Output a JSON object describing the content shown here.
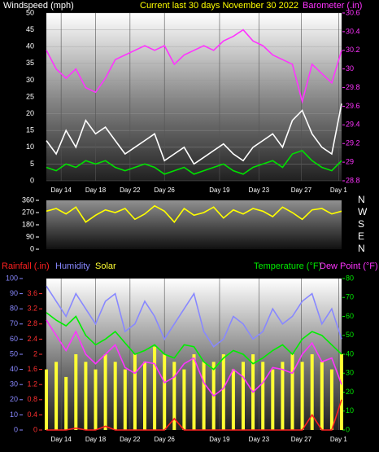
{
  "chart_data": [
    {
      "type": "line",
      "title": "Current last 30 days November 30 2022",
      "ylabel": "Windspeed (mph)",
      "y2label": "Barometer (.in)",
      "x": [
        0,
        1,
        2,
        3,
        4,
        5,
        6,
        7,
        8,
        9,
        10,
        11,
        12,
        13,
        14,
        15,
        16,
        17,
        18,
        19,
        20,
        21,
        22,
        23,
        24,
        25,
        26,
        27,
        28,
        29,
        30
      ],
      "xlim": [
        0,
        30
      ],
      "xticks": [
        {
          "value": 1.5,
          "label": "Day 14"
        },
        {
          "value": 5,
          "label": "Day 18"
        },
        {
          "value": 8.5,
          "label": "Day 22"
        },
        {
          "value": 12,
          "label": "Day 26"
        },
        {
          "value": 17.6,
          "label": "Day 19"
        },
        {
          "value": 21.6,
          "label": "Day 23"
        },
        {
          "value": 25.9,
          "label": "Day 27"
        },
        {
          "value": 29.7,
          "label": "Day 1"
        }
      ],
      "ylim": [
        0,
        50
      ],
      "yticks": [
        0,
        5,
        10,
        15,
        20,
        25,
        30,
        35,
        40,
        45,
        50
      ],
      "y2lim": [
        28.8,
        30.6
      ],
      "y2ticks": [
        28.8,
        29,
        29.2,
        29.4,
        29.6,
        29.8,
        30,
        30.2,
        30.4,
        30.6
      ],
      "grid": true,
      "series": [
        {
          "color": "#ffffff",
          "values": [
            12,
            8,
            15,
            10,
            18,
            14,
            16,
            12,
            8,
            10,
            12,
            14,
            6,
            8,
            10,
            5,
            7,
            9,
            11,
            8,
            6,
            10,
            12,
            14,
            10,
            18,
            21,
            14,
            10,
            8,
            23
          ]
        },
        {
          "color": "#00e000",
          "values": [
            4,
            3,
            5,
            4,
            6,
            5,
            6,
            4,
            3,
            4,
            5,
            4,
            2,
            3,
            4,
            2,
            3,
            4,
            5,
            3,
            2,
            4,
            5,
            6,
            4,
            8,
            9,
            6,
            4,
            3,
            6
          ]
        },
        {
          "color": "#ff33ff",
          "axis": "y2",
          "values": [
            30.2,
            30.0,
            29.9,
            30.0,
            29.8,
            29.75,
            29.9,
            30.1,
            30.15,
            30.2,
            30.25,
            30.2,
            30.25,
            30.05,
            30.15,
            30.2,
            30.25,
            30.2,
            30.3,
            30.35,
            30.42,
            30.3,
            30.25,
            30.15,
            30.1,
            30.05,
            29.65,
            30.05,
            29.95,
            29.85,
            30.2
          ]
        }
      ]
    },
    {
      "type": "line",
      "x": [
        0,
        1,
        2,
        3,
        4,
        5,
        6,
        7,
        8,
        9,
        10,
        11,
        12,
        13,
        14,
        15,
        16,
        17,
        18,
        19,
        20,
        21,
        22,
        23,
        24,
        25,
        26,
        27,
        28,
        29,
        30
      ],
      "xlim": [
        0,
        30
      ],
      "ylim": [
        0,
        360
      ],
      "yticks": [
        0,
        90,
        180,
        270,
        360
      ],
      "direction_labels": [
        "N",
        "E",
        "S",
        "W",
        "N"
      ],
      "series": [
        {
          "color": "#ffff00",
          "values": [
            280,
            300,
            260,
            310,
            200,
            250,
            290,
            270,
            300,
            220,
            260,
            320,
            280,
            200,
            300,
            250,
            270,
            310,
            230,
            290,
            260,
            300,
            280,
            240,
            310,
            270,
            220,
            290,
            300,
            260,
            280
          ]
        }
      ]
    },
    {
      "type": "line",
      "x": [
        0,
        1,
        2,
        3,
        4,
        5,
        6,
        7,
        8,
        9,
        10,
        11,
        12,
        13,
        14,
        15,
        16,
        17,
        18,
        19,
        20,
        21,
        22,
        23,
        24,
        25,
        26,
        27,
        28,
        29,
        30
      ],
      "xlim": [
        0,
        30
      ],
      "xticks": [
        {
          "value": 1.5,
          "label": "Day 14"
        },
        {
          "value": 5,
          "label": "Day 18"
        },
        {
          "value": 8.5,
          "label": "Day 22"
        },
        {
          "value": 12,
          "label": "Day 26"
        },
        {
          "value": 17.6,
          "label": "Day 19"
        },
        {
          "value": 21.6,
          "label": "Day 23"
        },
        {
          "value": 25.9,
          "label": "Day 27"
        },
        {
          "value": 29.7,
          "label": "Day 1"
        }
      ],
      "ylim": [
        0,
        100
      ],
      "yticks": [
        0,
        10,
        20,
        30,
        40,
        50,
        60,
        70,
        80,
        90,
        100
      ],
      "y2lim": [
        0,
        80
      ],
      "y2ticks": [
        0,
        10,
        20,
        30,
        40,
        50,
        60,
        70,
        80
      ],
      "y3lim": [
        0,
        4
      ],
      "y3ticks": [
        0,
        0.4,
        0.8,
        1.2,
        1.6,
        2,
        2.4,
        2.8,
        3.2,
        3.6
      ],
      "series": [
        {
          "name": "Solar",
          "color": "#ffff33",
          "kind": "bar",
          "values": [
            40,
            45,
            35,
            50,
            45,
            40,
            50,
            45,
            40,
            50,
            45,
            55,
            50,
            45,
            40,
            50,
            45,
            45,
            50,
            40,
            45,
            50,
            45,
            40,
            45,
            50,
            45,
            50,
            45,
            40,
            50
          ]
        },
        {
          "name": "Humidity",
          "color": "#8888ff",
          "values": [
            95,
            85,
            75,
            90,
            80,
            70,
            85,
            90,
            65,
            70,
            85,
            75,
            60,
            70,
            80,
            90,
            65,
            55,
            60,
            75,
            70,
            60,
            65,
            80,
            70,
            75,
            85,
            90,
            70,
            80,
            60
          ]
        },
        {
          "name": "Temperature (°F)",
          "color": "#00ee00",
          "axis": "y2",
          "values": [
            62,
            58,
            55,
            60,
            50,
            45,
            48,
            52,
            46,
            40,
            42,
            45,
            40,
            38,
            45,
            44,
            36,
            32,
            38,
            42,
            40,
            35,
            38,
            42,
            45,
            40,
            48,
            52,
            50,
            45,
            40
          ]
        },
        {
          "name": "Dew Point (°F)",
          "color": "#ff33ff",
          "axis": "y2",
          "values": [
            58,
            50,
            42,
            52,
            40,
            35,
            40,
            45,
            33,
            30,
            36,
            35,
            25,
            28,
            35,
            38,
            25,
            18,
            22,
            32,
            28,
            20,
            25,
            33,
            32,
            30,
            40,
            46,
            36,
            38,
            24
          ]
        },
        {
          "name": "Rainfall (.in)",
          "color": "#ff2020",
          "axis": "y3",
          "values": [
            0,
            0,
            0,
            0.05,
            0,
            0,
            0.1,
            0,
            0,
            0,
            0,
            0,
            0,
            0.3,
            0,
            0,
            0,
            0,
            0,
            0,
            0,
            0,
            0,
            0,
            0,
            0,
            0,
            0.4,
            0,
            0,
            0.8
          ]
        }
      ]
    }
  ]
}
